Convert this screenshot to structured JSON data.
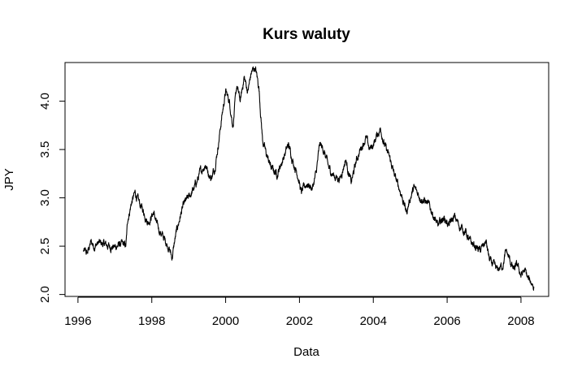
{
  "chart_data": {
    "type": "line",
    "title": "Kurs waluty",
    "xlabel": "Data",
    "ylabel": "JPY",
    "xlim": [
      1995.65,
      2008.75
    ],
    "ylim": [
      1.98,
      4.4
    ],
    "xticks": [
      1996,
      1998,
      2000,
      2002,
      2004,
      2006,
      2008
    ],
    "yticks": [
      2.0,
      2.5,
      3.0,
      3.5,
      4.0
    ],
    "ytick_labels": [
      "2.0",
      "2.5",
      "3.0",
      "3.5",
      "4.0"
    ],
    "grid": false,
    "legend": "none",
    "color": "#000000",
    "series": [
      {
        "x": [
          1996.15,
          1996.25,
          1996.35,
          1996.45,
          1996.55,
          1996.7,
          1996.85,
          1997.0,
          1997.15,
          1997.3,
          1997.35,
          1997.45,
          1997.55,
          1997.65,
          1997.75,
          1997.9,
          1998.05,
          1998.15,
          1998.3,
          1998.45,
          1998.55,
          1998.62,
          1998.7,
          1998.8,
          1998.9,
          1999.0,
          1999.15,
          1999.3,
          1999.45,
          1999.6,
          1999.7,
          1999.8,
          1999.9,
          2000.0,
          2000.1,
          2000.2,
          2000.3,
          2000.4,
          2000.5,
          2000.6,
          2000.7,
          2000.8,
          2000.9,
          2001.0,
          2001.1,
          2001.25,
          2001.4,
          2001.55,
          2001.7,
          2001.85,
          2001.95,
          2002.05,
          2002.2,
          2002.35,
          2002.45,
          2002.55,
          2002.65,
          2002.8,
          2002.95,
          2003.1,
          2003.25,
          2003.4,
          2003.55,
          2003.7,
          2003.8,
          2003.9,
          2004.0,
          2004.1,
          2004.2,
          2004.3,
          2004.45,
          2004.6,
          2004.75,
          2004.9,
          2005.0,
          2005.1,
          2005.2,
          2005.3,
          2005.45,
          2005.6,
          2005.75,
          2005.9,
          2006.05,
          2006.2,
          2006.35,
          2006.5,
          2006.6,
          2006.75,
          2006.9,
          2007.05,
          2007.15,
          2007.25,
          2007.35,
          2007.5,
          2007.6,
          2007.7,
          2007.8,
          2007.9,
          2008.0,
          2008.1,
          2008.2,
          2008.3,
          2008.35
        ],
        "y": [
          2.45,
          2.42,
          2.54,
          2.5,
          2.53,
          2.52,
          2.5,
          2.49,
          2.52,
          2.5,
          2.78,
          2.95,
          3.05,
          2.95,
          2.88,
          2.75,
          2.85,
          2.7,
          2.6,
          2.5,
          2.38,
          2.55,
          2.7,
          2.85,
          2.95,
          3.0,
          3.1,
          3.25,
          3.35,
          3.2,
          3.3,
          3.55,
          3.85,
          4.1,
          4.0,
          3.75,
          4.15,
          4.0,
          4.25,
          4.1,
          4.3,
          4.35,
          4.15,
          3.6,
          3.45,
          3.3,
          3.25,
          3.4,
          3.55,
          3.35,
          3.25,
          3.05,
          3.15,
          3.1,
          3.25,
          3.55,
          3.5,
          3.3,
          3.22,
          3.2,
          3.4,
          3.15,
          3.4,
          3.55,
          3.62,
          3.5,
          3.55,
          3.65,
          3.72,
          3.55,
          3.4,
          3.2,
          3.05,
          2.85,
          3.0,
          3.1,
          3.05,
          3.0,
          2.95,
          2.85,
          2.7,
          2.8,
          2.72,
          2.8,
          2.7,
          2.65,
          2.55,
          2.5,
          2.45,
          2.55,
          2.35,
          2.3,
          2.25,
          2.3,
          2.45,
          2.35,
          2.25,
          2.3,
          2.2,
          2.25,
          2.15,
          2.12,
          2.08
        ]
      }
    ]
  }
}
